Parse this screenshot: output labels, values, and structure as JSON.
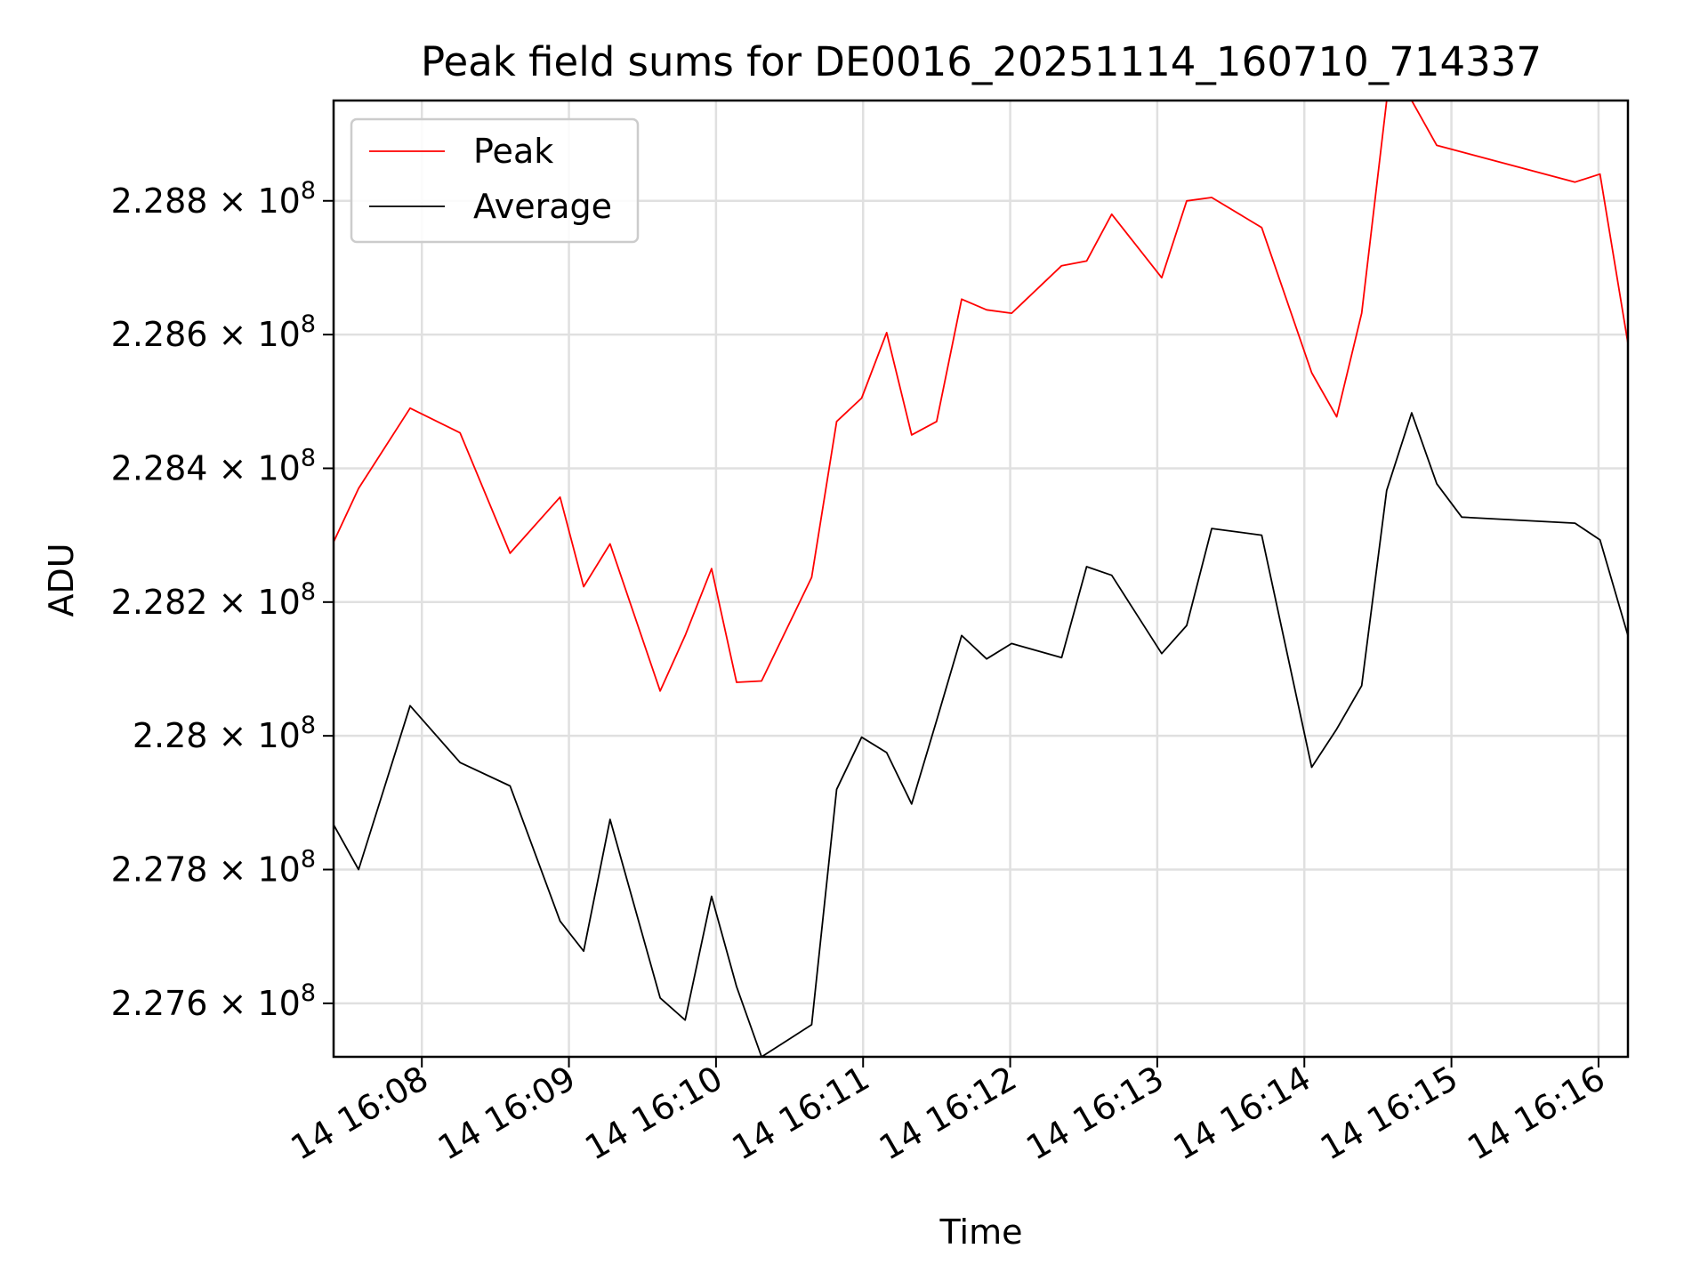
{
  "chart_data": {
    "type": "line",
    "title": "Peak field sums for DE0016_20251114_160710_714337",
    "xlabel": "Time",
    "ylabel": "ADU",
    "grid": true,
    "legend_position": "top-left",
    "xlim": [
      7.4,
      16.2
    ],
    "ylim": [
      227520000.0,
      228950000.0
    ],
    "x_ticks": [
      {
        "value": 8,
        "label": "14 16:08"
      },
      {
        "value": 9,
        "label": "14 16:09"
      },
      {
        "value": 10,
        "label": "14 16:10"
      },
      {
        "value": 11,
        "label": "14 16:11"
      },
      {
        "value": 12,
        "label": "14 16:12"
      },
      {
        "value": 13,
        "label": "14 16:13"
      },
      {
        "value": 14,
        "label": "14 16:14"
      },
      {
        "value": 15,
        "label": "14 16:15"
      },
      {
        "value": 16,
        "label": "14 16:16"
      }
    ],
    "y_ticks": [
      {
        "value": 227600000.0,
        "mantissa": "2.276",
        "base": "× 10",
        "exp": "8"
      },
      {
        "value": 227800000.0,
        "mantissa": "2.278",
        "base": "× 10",
        "exp": "8"
      },
      {
        "value": 228000000.0,
        "mantissa": "2.28",
        "base": "× 10",
        "exp": "8"
      },
      {
        "value": 228200000.0,
        "mantissa": "2.282",
        "base": "× 10",
        "exp": "8"
      },
      {
        "value": 228400000.0,
        "mantissa": "2.284",
        "base": "× 10",
        "exp": "8"
      },
      {
        "value": 228600000.0,
        "mantissa": "2.286",
        "base": "× 10",
        "exp": "8"
      },
      {
        "value": 228800000.0,
        "mantissa": "2.288",
        "base": "× 10",
        "exp": "8"
      }
    ],
    "series": [
      {
        "name": "Peak",
        "color": "#ff0000",
        "points": [
          [
            7.4,
            228290000.0
          ],
          [
            7.57,
            228370000.0
          ],
          [
            7.92,
            228490000.0
          ],
          [
            8.26,
            228453000.0
          ],
          [
            8.6,
            228273000.0
          ],
          [
            8.94,
            228357000.0
          ],
          [
            9.1,
            228223000.0
          ],
          [
            9.28,
            228287000.0
          ],
          [
            9.62,
            228067000.0
          ],
          [
            9.79,
            228150000.0
          ],
          [
            9.97,
            228250000.0
          ],
          [
            10.14,
            228080000.0
          ],
          [
            10.31,
            228082000.0
          ],
          [
            10.65,
            228237000.0
          ],
          [
            10.82,
            228470000.0
          ],
          [
            10.99,
            228505000.0
          ],
          [
            11.16,
            228603000.0
          ],
          [
            11.33,
            228450000.0
          ],
          [
            11.5,
            228470000.0
          ],
          [
            11.67,
            228653000.0
          ],
          [
            11.84,
            228637000.0
          ],
          [
            12.01,
            228632000.0
          ],
          [
            12.35,
            228703000.0
          ],
          [
            12.52,
            228710000.0
          ],
          [
            12.69,
            228780000.0
          ],
          [
            13.03,
            228685000.0
          ],
          [
            13.2,
            228800000.0
          ],
          [
            13.37,
            228805000.0
          ],
          [
            13.71,
            228760000.0
          ],
          [
            14.05,
            228543000.0
          ],
          [
            14.22,
            228477000.0
          ],
          [
            14.39,
            228632000.0
          ],
          [
            14.56,
            228950000.0
          ],
          [
            14.73,
            228950000.0
          ],
          [
            14.9,
            228883000.0
          ],
          [
            15.84,
            228828000.0
          ],
          [
            16.01,
            228840000.0
          ],
          [
            16.2,
            228587000.0
          ]
        ]
      },
      {
        "name": "Average",
        "color": "#000000",
        "points": [
          [
            7.4,
            227867000.0
          ],
          [
            7.57,
            227800000.0
          ],
          [
            7.92,
            228045000.0
          ],
          [
            8.26,
            227960000.0
          ],
          [
            8.6,
            227925000.0
          ],
          [
            8.94,
            227723000.0
          ],
          [
            9.1,
            227678000.0
          ],
          [
            9.28,
            227875000.0
          ],
          [
            9.62,
            227608000.0
          ],
          [
            9.79,
            227575000.0
          ],
          [
            9.97,
            227760000.0
          ],
          [
            10.14,
            227625000.0
          ],
          [
            10.31,
            227520000.0
          ],
          [
            10.65,
            227568000.0
          ],
          [
            10.82,
            227920000.0
          ],
          [
            10.99,
            227998000.0
          ],
          [
            11.16,
            227975000.0
          ],
          [
            11.33,
            227898000.0
          ],
          [
            11.5,
            228023000.0
          ],
          [
            11.67,
            228150000.0
          ],
          [
            11.84,
            228115000.0
          ],
          [
            12.01,
            228138000.0
          ],
          [
            12.35,
            228117000.0
          ],
          [
            12.52,
            228253000.0
          ],
          [
            12.69,
            228240000.0
          ],
          [
            13.03,
            228123000.0
          ],
          [
            13.2,
            228165000.0
          ],
          [
            13.37,
            228310000.0
          ],
          [
            13.71,
            228300000.0
          ],
          [
            14.05,
            227953000.0
          ],
          [
            14.22,
            228010000.0
          ],
          [
            14.39,
            228075000.0
          ],
          [
            14.56,
            228367000.0
          ],
          [
            14.73,
            228483000.0
          ],
          [
            14.9,
            228377000.0
          ],
          [
            15.07,
            228327000.0
          ],
          [
            15.84,
            228318000.0
          ],
          [
            16.01,
            228293000.0
          ],
          [
            16.2,
            228150000.0
          ]
        ]
      }
    ]
  }
}
